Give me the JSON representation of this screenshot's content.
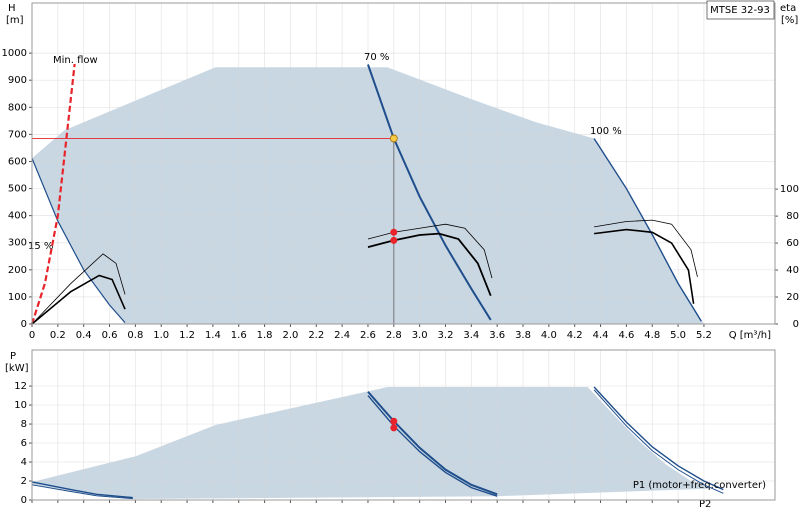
{
  "chart_data": [
    {
      "type": "line",
      "title": "MTSE 32-93",
      "y_label": "H",
      "y_unit": "[m]",
      "y2_label": "eta",
      "y2_unit": "[%]",
      "x_label": "Q [m³/h]",
      "xlim": [
        0,
        5.75
      ],
      "xticks": [
        0,
        0.2,
        0.4,
        0.6,
        0.8,
        {
          "value": 1,
          "label": "1.0"
        },
        1.2,
        1.4,
        1.6,
        1.8,
        {
          "value": 2,
          "label": "2.0"
        },
        2.2,
        2.4,
        2.6,
        2.8,
        {
          "value": 3,
          "label": "3.0"
        },
        3.2,
        3.4,
        3.6,
        3.8,
        {
          "value": 4,
          "label": "4.0"
        },
        4.2,
        4.4,
        4.6,
        4.8,
        {
          "value": 5,
          "label": "5.0"
        },
        5.2
      ],
      "x_tick_labels": true,
      "ylim": [
        0,
        1185
      ],
      "yticks": [
        0,
        100,
        200,
        300,
        400,
        500,
        600,
        700,
        800,
        900,
        1000
      ],
      "y2lim": [
        0,
        238
      ],
      "y2ticks": [
        0,
        20,
        40,
        60,
        80,
        100
      ],
      "grid": true,
      "series": [
        {
          "color": "#c9d7e3",
          "fill": true,
          "x": [
            0,
            0.25,
            1.42,
            2.75,
            3.4,
            3.9,
            4.35,
            4.6,
            4.8,
            5.0,
            5.2,
            0.72,
            0.6,
            0.4,
            0.2,
            0
          ],
          "values": [
            612,
            715,
            948,
            948,
            830,
            745,
            685,
            500,
            330,
            150,
            0,
            0,
            70,
            200,
            380,
            612
          ]
        },
        {
          "name": "15 %",
          "color": "#1f4e8c",
          "width": 1.2,
          "x": [
            0,
            0.2,
            0.4,
            0.6,
            0.72
          ],
          "values": [
            612,
            380,
            200,
            70,
            5
          ]
        },
        {
          "name": "70 %",
          "color": "#1f4e8c",
          "width": 2,
          "x": [
            2.6,
            2.8,
            3.0,
            3.2,
            3.4,
            3.55
          ],
          "values": [
            958,
            685,
            470,
            290,
            130,
            15
          ]
        },
        {
          "name": "100 %",
          "color": "#1f4e8c",
          "width": 1.4,
          "x": [
            4.35,
            4.6,
            4.8,
            5.0,
            5.18
          ],
          "values": [
            685,
            500,
            330,
            150,
            10
          ]
        },
        {
          "name": "Min. flow",
          "color": "#e8242a",
          "width": 2.2,
          "dash": true,
          "x": [
            0,
            0.1,
            0.2,
            0.3,
            0.33
          ],
          "values": [
            0,
            150,
            400,
            830,
            960
          ]
        },
        {
          "axis": "y2",
          "color": "#000000",
          "width": 0.8,
          "x": [
            0,
            0.3,
            0.55,
            0.65,
            0.72
          ],
          "values": [
            0,
            30,
            52,
            45,
            22
          ]
        },
        {
          "axis": "y2",
          "color": "#000000",
          "width": 1.6,
          "x": [
            0,
            0.3,
            0.52,
            0.62,
            0.72
          ],
          "values": [
            0,
            24,
            36,
            33,
            11
          ]
        },
        {
          "axis": "y2",
          "color": "#000000",
          "width": 0.8,
          "x": [
            2.6,
            2.8,
            3.0,
            3.2,
            3.35,
            3.5,
            3.56
          ],
          "values": [
            63,
            68,
            71,
            74,
            71,
            55,
            34
          ]
        },
        {
          "axis": "y2",
          "color": "#000000",
          "width": 1.8,
          "x": [
            2.6,
            2.8,
            3.0,
            3.15,
            3.3,
            3.45,
            3.55
          ],
          "values": [
            57,
            62,
            66,
            67,
            63,
            45,
            21
          ]
        },
        {
          "axis": "y2",
          "color": "#000000",
          "width": 0.8,
          "x": [
            4.35,
            4.6,
            4.8,
            4.95,
            5.1,
            5.15
          ],
          "values": [
            72,
            76,
            77,
            74,
            55,
            35
          ]
        },
        {
          "axis": "y2",
          "color": "#000000",
          "width": 1.6,
          "x": [
            4.35,
            4.6,
            4.8,
            4.95,
            5.08,
            5.12
          ],
          "values": [
            67,
            70,
            68,
            60,
            40,
            15
          ]
        }
      ],
      "duty_point": {
        "x": 2.8,
        "y": 685,
        "color": "#f7c948"
      },
      "markers": {
        "x": 2.8,
        "axis": "y2",
        "values": [
          68,
          62
        ],
        "color": "#e8242a"
      }
    },
    {
      "type": "line",
      "y_label": "P",
      "y_unit": "[kW]",
      "xlim": [
        0,
        5.75
      ],
      "xticks": [
        0,
        0.2,
        0.4,
        0.6,
        0.8,
        1,
        1.2,
        1.4,
        1.6,
        1.8,
        2,
        2.2,
        2.4,
        2.6,
        2.8,
        3,
        3.2,
        3.4,
        3.6,
        3.8,
        4,
        4.2,
        4.4,
        4.6,
        4.8,
        5,
        5.2
      ],
      "x_tick_labels": false,
      "ylim": [
        0,
        15.8
      ],
      "yticks": [
        0,
        2,
        4,
        6,
        8,
        10,
        12
      ],
      "grid": true,
      "series": [
        {
          "color": "#c9d7e3",
          "fill": true,
          "x": [
            0,
            0.8,
            1.42,
            2.75,
            4.3,
            4.5,
            4.7,
            4.9,
            5.1,
            5.25,
            3.6,
            0.75,
            0.4,
            0
          ],
          "values": [
            1.9,
            4.6,
            7.9,
            11.9,
            11.9,
            9.0,
            6.2,
            3.8,
            2.0,
            1.2,
            0.4,
            0.1,
            0.7,
            1.6
          ]
        },
        {
          "color": "#1f4e8c",
          "width": 1.4,
          "x": [
            0,
            0.3,
            0.5,
            0.78
          ],
          "values": [
            1.9,
            1.1,
            0.6,
            0.25
          ]
        },
        {
          "color": "#1f4e8c",
          "width": 1,
          "x": [
            0,
            0.3,
            0.5,
            0.78
          ],
          "values": [
            1.6,
            0.9,
            0.45,
            0.15
          ]
        },
        {
          "color": "#1f4e8c",
          "width": 2,
          "x": [
            2.6,
            2.8,
            3.0,
            3.2,
            3.4,
            3.6
          ],
          "values": [
            11.4,
            8.3,
            5.5,
            3.2,
            1.6,
            0.6
          ]
        },
        {
          "color": "#1f4e8c",
          "width": 1.4,
          "x": [
            2.6,
            2.8,
            3.0,
            3.2,
            3.4,
            3.6
          ],
          "values": [
            11.0,
            7.8,
            5.1,
            2.9,
            1.3,
            0.4
          ]
        },
        {
          "name": "P1 (motor+freq.converter)",
          "color": "#1f4e8c",
          "width": 1.4,
          "x": [
            4.35,
            4.6,
            4.8,
            5.0,
            5.2,
            5.35
          ],
          "values": [
            11.9,
            8.2,
            5.6,
            3.6,
            2.0,
            1.1
          ]
        },
        {
          "name": "P2",
          "color": "#1f4e8c",
          "width": 1,
          "x": [
            4.35,
            4.6,
            4.8,
            5.0,
            5.2,
            5.35
          ],
          "values": [
            11.6,
            7.8,
            5.2,
            3.2,
            1.6,
            0.7
          ]
        }
      ],
      "markers": {
        "x": 2.8,
        "values": [
          8.3,
          7.6
        ],
        "color": "#e8242a"
      }
    }
  ]
}
